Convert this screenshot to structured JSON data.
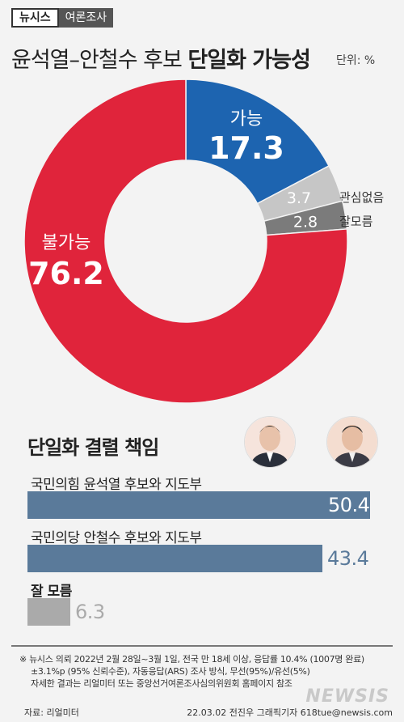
{
  "header": {
    "brand": "뉴시스",
    "category": "여론조사",
    "title_normal": "윤석열–안철수 후보 ",
    "title_bold": "단일화 가능성",
    "unit": "단위: %"
  },
  "chart_data": [
    {
      "type": "pie",
      "title": "윤석열–안철수 후보 단일화 가능성",
      "slices": [
        {
          "label": "가능",
          "value": 17.3,
          "color": "#1d64b0"
        },
        {
          "label": "관심없음",
          "value": 3.7,
          "color": "#c6c6c6"
        },
        {
          "label": "잘모름",
          "value": 2.8,
          "color": "#7b7b7b"
        },
        {
          "label": "불가능",
          "value": 76.2,
          "color": "#e0243b"
        }
      ]
    },
    {
      "type": "bar",
      "title": "단일화 결렬 책임",
      "categories": [
        "국민의힘 윤석열 후보와 지도부",
        "국민의당 안철수 후보와 지도부",
        "잘 모름"
      ],
      "values": [
        50.4,
        43.4,
        6.3
      ],
      "colors": [
        "#5a7a9a",
        "#5a7a9a",
        "#aaaaaa"
      ],
      "value_colors": [
        "#ffffff",
        "#5a7a9a",
        "#aaaaaa"
      ]
    }
  ],
  "footer": {
    "note_lines": [
      "※ 뉴시스 의뢰 2022년 2월 28일~3월 1일, 전국 만 18세 이상, 응답률 10.4% (1007명 완료)",
      "±3.1%p (95% 신뢰수준), 자동응답(ARS) 조사 방식, 무선(95%)/유선(5%)",
      "자세한 결과는 리얼미터 또는 중앙선거여론조사심의위원회 홈페이지 참조"
    ],
    "source": "자료: 리얼미터",
    "credit": "22.03.02 전진우 그래픽기자 618tue@newsis.com",
    "logo": "NEWSIS"
  }
}
